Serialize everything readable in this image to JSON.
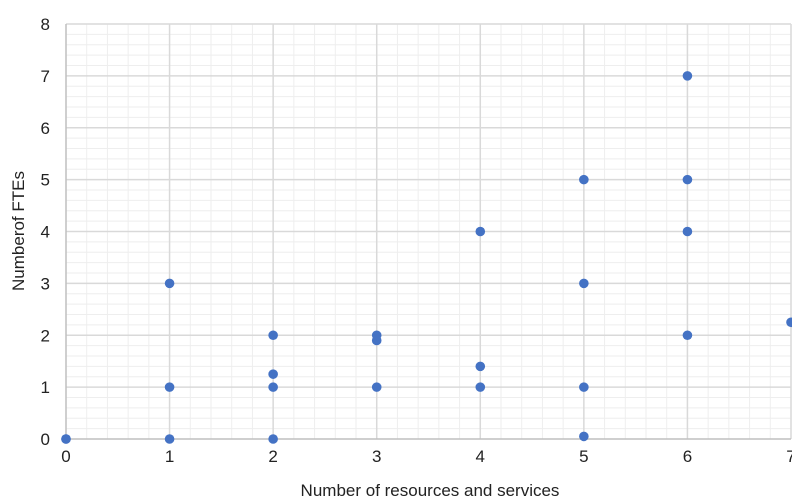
{
  "chart_data": {
    "type": "scatter",
    "title": "",
    "xlabel": "Number of resources and services",
    "ylabel": "Numberof FTEs",
    "xlim": [
      0,
      7
    ],
    "ylim": [
      0,
      8
    ],
    "x_ticks": [
      "0",
      "1",
      "2",
      "3",
      "4",
      "5",
      "6",
      "7"
    ],
    "y_ticks": [
      "0",
      "1",
      "2",
      "3",
      "4",
      "5",
      "6",
      "7",
      "8"
    ],
    "grid": {
      "major": true,
      "minor": true
    },
    "legend": "none",
    "colors": {
      "marker": "#4472c4",
      "major_grid": "#d9d9d9",
      "minor_grid": "#eeeeee"
    },
    "series": [
      {
        "points": [
          [
            0,
            0
          ],
          [
            0,
            0
          ],
          [
            1,
            3
          ],
          [
            1,
            1
          ],
          [
            1,
            0
          ],
          [
            2,
            2
          ],
          [
            2,
            1.25
          ],
          [
            2,
            1
          ],
          [
            2,
            0
          ],
          [
            3,
            2
          ],
          [
            3,
            1.9
          ],
          [
            3,
            1
          ],
          [
            4,
            4
          ],
          [
            4,
            1.4
          ],
          [
            4,
            1
          ],
          [
            5,
            5
          ],
          [
            5,
            3
          ],
          [
            5,
            1
          ],
          [
            5,
            0.05
          ],
          [
            6,
            7
          ],
          [
            6,
            5
          ],
          [
            6,
            4
          ],
          [
            6,
            2
          ],
          [
            7,
            2.25
          ]
        ]
      }
    ]
  }
}
